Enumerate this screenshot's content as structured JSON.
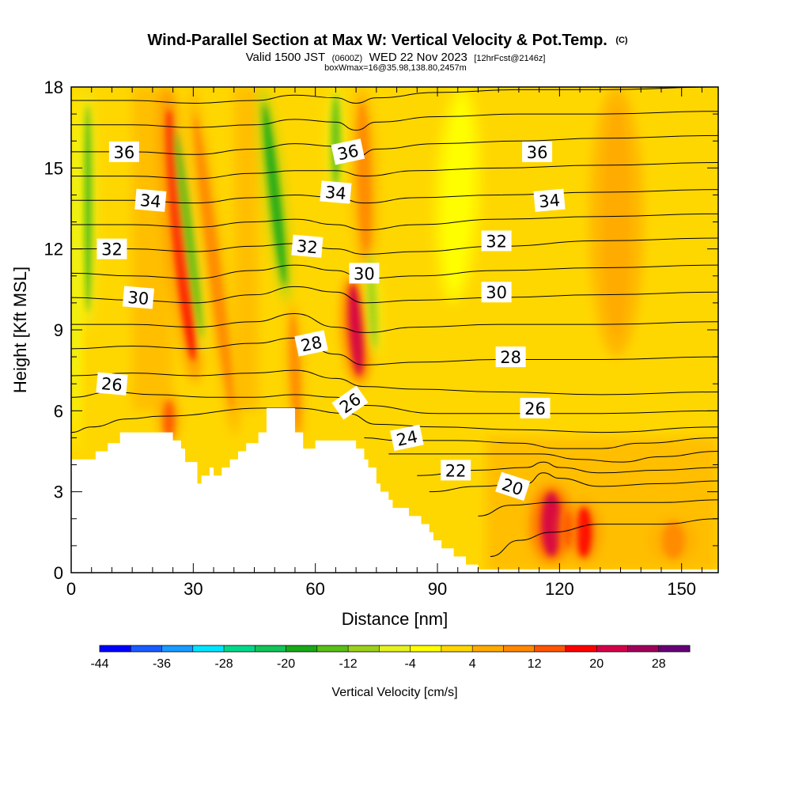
{
  "chart_data": {
    "type": "heatmap",
    "title": {
      "main": "Wind-Parallel Section at Max W: Vertical Velocity & Pot.Temp.",
      "copyright": "(C)"
    },
    "subtitle": {
      "valid": "Valid 1500 JST",
      "utc": "(0600Z)",
      "date": "WED 22 Nov 2023",
      "forecast": "[12hrFcst@2146z]"
    },
    "subtitle2": "boxWmax=16@35.98,138.80,2457m",
    "xlabel": "Distance [nm]",
    "ylabel": "Height [Kft MSL]",
    "xlim": [
      0,
      159
    ],
    "ylim": [
      0,
      18
    ],
    "x_ticks": [
      0,
      30,
      60,
      90,
      120,
      150
    ],
    "y_ticks": [
      0,
      3,
      6,
      9,
      12,
      15,
      18
    ],
    "colorbar": {
      "label": "Vertical Velocity [cm/s]",
      "tick_values": [
        -44,
        -36,
        -28,
        -20,
        -12,
        -4,
        4,
        12,
        20,
        28
      ],
      "colors": [
        "#0000ff",
        "#1a5cff",
        "#1a9bff",
        "#00e5ff",
        "#00d98c",
        "#12c45a",
        "#19a817",
        "#5abf17",
        "#9bd11c",
        "#e5f221",
        "#ffff00",
        "#ffd700",
        "#ffaa00",
        "#ff8800",
        "#ff5500",
        "#ff0000",
        "#d4004a",
        "#a0005a",
        "#660077"
      ]
    },
    "terrain_profile": {
      "x": [
        0,
        4,
        6,
        7,
        9,
        10,
        12,
        14,
        23,
        25,
        27,
        28,
        31,
        32,
        34,
        35,
        37,
        39,
        41,
        43,
        46,
        48,
        51,
        53,
        55,
        57,
        58,
        60,
        64,
        66,
        67,
        68,
        70,
        72,
        73,
        75,
        76,
        78,
        79,
        80,
        82,
        83,
        85,
        86,
        88,
        89,
        91,
        92,
        94,
        95,
        97,
        98,
        100,
        101,
        102,
        159
      ],
      "height": [
        4.2,
        4.2,
        4.5,
        4.5,
        4.8,
        4.8,
        5.2,
        5.2,
        5.2,
        4.9,
        4.6,
        4.1,
        3.3,
        3.6,
        3.9,
        3.6,
        3.9,
        4.2,
        4.5,
        4.8,
        5.2,
        6.1,
        6.1,
        6.1,
        5.2,
        4.6,
        4.6,
        4.9,
        4.9,
        4.9,
        4.9,
        4.9,
        4.6,
        4.2,
        3.9,
        3.3,
        3.0,
        2.7,
        2.4,
        2.4,
        2.4,
        2.1,
        2.1,
        1.8,
        1.5,
        1.2,
        0.9,
        0.9,
        0.6,
        0.6,
        0.3,
        0.3,
        0.0,
        0.0,
        0.0,
        0.0
      ]
    },
    "vertical_velocity_features": [
      {
        "x": 27,
        "bottom": 7,
        "top": 18,
        "width": 3.5,
        "value": 18,
        "tilt": -0.7
      },
      {
        "x": 24,
        "bottom": 4.8,
        "top": 6.5,
        "width": 2.2,
        "value": 14,
        "tilt": 0
      },
      {
        "x": 70,
        "bottom": 7,
        "top": 11,
        "width": 3.0,
        "value": 20,
        "tilt": -0.5
      },
      {
        "x": 72,
        "bottom": 11,
        "top": 18,
        "width": 3.0,
        "value": 10,
        "tilt": -0.2
      },
      {
        "x": 35,
        "bottom": 5,
        "top": 18,
        "width": 2.5,
        "value": 7,
        "tilt": -0.9
      },
      {
        "x": 55,
        "bottom": 4.8,
        "top": 10,
        "width": 2.0,
        "value": 10,
        "tilt": -0.3
      },
      {
        "x": 118,
        "bottom": 0.4,
        "top": 3.2,
        "width": 4.5,
        "value": 20,
        "tilt": 0
      },
      {
        "x": 126,
        "bottom": 0.4,
        "top": 2.6,
        "width": 3.5,
        "value": 18,
        "tilt": 0
      },
      {
        "x": 122,
        "bottom": 0.8,
        "top": 2.4,
        "width": 2.0,
        "value": 14,
        "tilt": 0
      },
      {
        "x": 148,
        "bottom": 0.4,
        "top": 2.0,
        "width": 5,
        "value": 8,
        "tilt": 0
      },
      {
        "x": 4,
        "bottom": 9,
        "top": 18,
        "width": 2.0,
        "value": -18,
        "tilt": 0
      },
      {
        "x": 1,
        "bottom": 4.5,
        "top": 18,
        "width": 1.3,
        "value": -6,
        "tilt": 0
      },
      {
        "x": 29,
        "bottom": 8,
        "top": 17,
        "width": 1.8,
        "value": -16,
        "tilt": -0.9
      },
      {
        "x": 50,
        "bottom": 10,
        "top": 18,
        "width": 2.2,
        "value": -20,
        "tilt": -0.8
      },
      {
        "x": 65,
        "bottom": 14,
        "top": 18,
        "width": 2.0,
        "value": -18,
        "tilt": 0
      },
      {
        "x": 74,
        "bottom": 8,
        "top": 12,
        "width": 1.8,
        "value": -14,
        "tilt": -0.4
      },
      {
        "x": 95,
        "bottom": 10,
        "top": 18,
        "width": 5,
        "value": -4,
        "tilt": 0.3
      },
      {
        "x": 134,
        "bottom": 8,
        "top": 18,
        "width": 6,
        "value": 5,
        "tilt": 0
      }
    ],
    "theta_contours": [
      {
        "value": 19,
        "x": [
          103,
          110,
          118,
          130,
          145,
          159
        ],
        "height": [
          0.6,
          1.2,
          1.5,
          1.8,
          1.8,
          2.0
        ]
      },
      {
        "value": 20,
        "x": [
          100,
          108,
          118,
          130,
          145,
          159
        ],
        "height": [
          2.1,
          2.5,
          2.6,
          2.6,
          2.6,
          2.7
        ]
      },
      {
        "value": 21,
        "x": [
          88,
          100,
          112,
          116,
          120,
          130,
          145,
          159
        ],
        "height": [
          3.0,
          3.2,
          3.3,
          3.7,
          3.5,
          3.2,
          3.3,
          3.4
        ]
      },
      {
        "value": 22,
        "x": [
          85,
          100,
          112,
          116,
          120,
          130,
          145,
          159
        ],
        "height": [
          3.6,
          3.8,
          3.9,
          4.1,
          3.9,
          3.7,
          3.8,
          3.9
        ]
      },
      {
        "value": 23,
        "x": [
          78,
          90,
          105,
          115,
          125,
          135,
          145,
          159
        ],
        "height": [
          4.4,
          4.4,
          4.4,
          4.4,
          4.2,
          4.1,
          4.3,
          4.5
        ]
      },
      {
        "value": 24,
        "x": [
          72,
          80,
          95,
          110,
          120,
          130,
          140,
          159
        ],
        "height": [
          5.0,
          4.9,
          4.9,
          4.8,
          4.6,
          4.6,
          4.8,
          5.0
        ]
      },
      {
        "value": 25,
        "x": [
          0,
          5,
          14,
          22,
          48,
          55,
          68,
          75,
          90,
          110,
          130,
          159
        ],
        "height": [
          5.2,
          5.4,
          5.7,
          5.8,
          6.1,
          6.1,
          5.9,
          5.5,
          5.4,
          5.3,
          5.2,
          5.4
        ]
      },
      {
        "value": 26,
        "x": [
          0,
          10,
          20,
          35,
          45,
          55,
          65,
          72,
          90,
          110,
          130,
          159
        ],
        "height": [
          6.5,
          6.7,
          6.6,
          6.5,
          6.5,
          6.6,
          6.5,
          6.2,
          5.9,
          5.9,
          5.9,
          6.0
        ]
      },
      {
        "value": 27,
        "x": [
          0,
          15,
          30,
          45,
          55,
          65,
          72,
          85,
          105,
          130,
          159
        ],
        "height": [
          7.3,
          7.4,
          7.3,
          7.4,
          7.5,
          7.2,
          6.9,
          6.8,
          6.7,
          6.6,
          6.7
        ]
      },
      {
        "value": 28,
        "x": [
          0,
          15,
          30,
          45,
          55,
          65,
          72,
          85,
          105,
          130,
          159
        ],
        "height": [
          8.3,
          8.4,
          8.3,
          8.5,
          8.7,
          8.1,
          7.7,
          7.8,
          7.9,
          7.9,
          8.0
        ]
      },
      {
        "value": 29,
        "x": [
          0,
          15,
          30,
          45,
          55,
          65,
          72,
          85,
          105,
          130,
          159
        ],
        "height": [
          9.2,
          9.2,
          9.1,
          9.3,
          9.6,
          9.1,
          8.9,
          9.1,
          9.2,
          9.2,
          9.3
        ]
      },
      {
        "value": 30,
        "x": [
          0,
          15,
          30,
          45,
          55,
          65,
          72,
          85,
          105,
          130,
          159
        ],
        "height": [
          10.2,
          10.1,
          10.0,
          10.3,
          10.6,
          10.4,
          10.0,
          10.1,
          10.2,
          10.3,
          10.4
        ]
      },
      {
        "value": 31,
        "x": [
          0,
          15,
          30,
          45,
          55,
          65,
          72,
          85,
          105,
          130,
          159
        ],
        "height": [
          11.1,
          11.0,
          10.9,
          11.2,
          11.4,
          11.2,
          10.9,
          11.0,
          11.2,
          11.3,
          11.4
        ]
      },
      {
        "value": 32,
        "x": [
          0,
          15,
          30,
          45,
          55,
          65,
          72,
          85,
          105,
          130,
          159
        ],
        "height": [
          12.0,
          12.0,
          11.9,
          12.1,
          12.2,
          12.0,
          11.8,
          11.9,
          12.1,
          12.3,
          12.4
        ]
      },
      {
        "value": 33,
        "x": [
          0,
          15,
          30,
          45,
          55,
          65,
          72,
          85,
          105,
          130,
          159
        ],
        "height": [
          12.9,
          12.9,
          12.8,
          13.0,
          13.1,
          12.9,
          12.7,
          12.9,
          13.1,
          13.2,
          13.3
        ]
      },
      {
        "value": 34,
        "x": [
          0,
          15,
          30,
          45,
          55,
          65,
          72,
          85,
          105,
          130,
          159
        ],
        "height": [
          13.8,
          13.8,
          13.7,
          13.9,
          14.0,
          13.9,
          13.7,
          13.9,
          14.0,
          14.1,
          14.2
        ]
      },
      {
        "value": 35,
        "x": [
          0,
          15,
          30,
          45,
          55,
          65,
          72,
          85,
          105,
          130,
          159
        ],
        "height": [
          14.7,
          14.7,
          14.6,
          14.8,
          14.9,
          14.9,
          14.7,
          14.9,
          15.0,
          15.1,
          15.2
        ]
      },
      {
        "value": 36,
        "x": [
          0,
          15,
          30,
          45,
          55,
          65,
          70,
          75,
          90,
          110,
          130,
          159
        ],
        "height": [
          15.6,
          15.6,
          15.5,
          15.7,
          15.9,
          15.8,
          15.4,
          15.7,
          15.9,
          16.0,
          16.1,
          16.2
        ]
      },
      {
        "value": 37,
        "x": [
          0,
          15,
          30,
          45,
          55,
          65,
          70,
          75,
          90,
          110,
          130,
          159
        ],
        "height": [
          16.6,
          16.6,
          16.5,
          16.6,
          16.8,
          16.7,
          16.4,
          16.7,
          16.9,
          17.0,
          17.0,
          17.1
        ]
      },
      {
        "value": 38,
        "x": [
          0,
          15,
          30,
          45,
          55,
          65,
          70,
          75,
          90,
          110,
          130,
          159
        ],
        "height": [
          17.5,
          17.5,
          17.4,
          17.5,
          17.7,
          17.6,
          17.4,
          17.6,
          17.8,
          17.9,
          17.9,
          18.0
        ]
      }
    ],
    "contour_labels": [
      {
        "text": "36",
        "x": 13,
        "height": 15.6,
        "angle": 0
      },
      {
        "text": "34",
        "x": 19.5,
        "height": 13.8,
        "angle": -5
      },
      {
        "text": "32",
        "x": 10,
        "height": 12.0,
        "angle": 0
      },
      {
        "text": "30",
        "x": 16.5,
        "height": 10.2,
        "angle": -5
      },
      {
        "text": "26",
        "x": 10,
        "height": 7.0,
        "angle": -5
      },
      {
        "text": "36",
        "x": 68,
        "height": 15.6,
        "angle": 12
      },
      {
        "text": "34",
        "x": 65,
        "height": 14.1,
        "angle": -5
      },
      {
        "text": "32",
        "x": 58,
        "height": 12.1,
        "angle": -5
      },
      {
        "text": "30",
        "x": 72,
        "height": 11.1,
        "angle": 0
      },
      {
        "text": "28",
        "x": 59,
        "height": 8.5,
        "angle": 12
      },
      {
        "text": "26",
        "x": 68.5,
        "height": 6.3,
        "angle": 35
      },
      {
        "text": "24",
        "x": 82.5,
        "height": 5.0,
        "angle": 12
      },
      {
        "text": "22",
        "x": 94.5,
        "height": 3.8,
        "angle": 0
      },
      {
        "text": "20",
        "x": 108.5,
        "height": 3.2,
        "angle": -18
      },
      {
        "text": "36",
        "x": 114.5,
        "height": 15.6,
        "angle": 0
      },
      {
        "text": "34",
        "x": 117.5,
        "height": 13.8,
        "angle": 5
      },
      {
        "text": "32",
        "x": 104.5,
        "height": 12.3,
        "angle": 0
      },
      {
        "text": "30",
        "x": 104.5,
        "height": 10.4,
        "angle": 0
      },
      {
        "text": "28",
        "x": 108,
        "height": 8.0,
        "angle": 0
      },
      {
        "text": "26",
        "x": 114,
        "height": 6.1,
        "angle": 0
      }
    ]
  }
}
